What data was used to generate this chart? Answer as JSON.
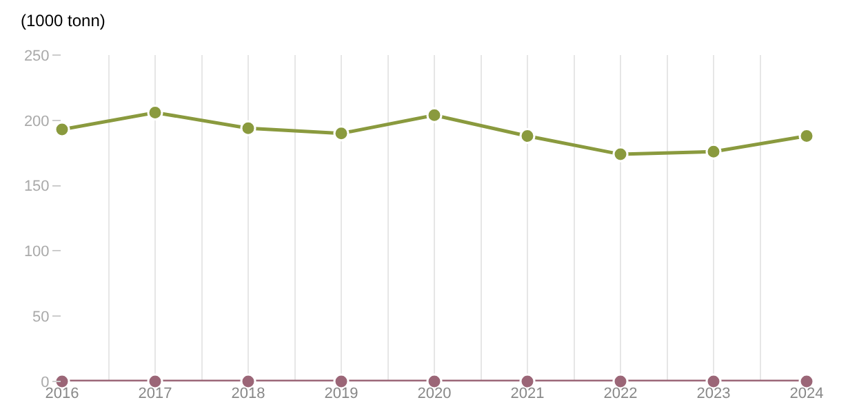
{
  "chart_data": {
    "type": "line",
    "ylabel": "(1000 tonn)",
    "x": [
      2016,
      2017,
      2018,
      2019,
      2020,
      2021,
      2022,
      2023,
      2024
    ],
    "series": [
      {
        "color": "#8a9a3e",
        "values": [
          193,
          206,
          194,
          190,
          204,
          188,
          174,
          176,
          188
        ]
      },
      {
        "color": "#9b6677",
        "values": [
          0,
          0,
          0,
          0,
          0,
          0,
          0,
          0,
          0
        ]
      }
    ],
    "xlim": [
      2016,
      2024
    ],
    "xticks": [
      2016,
      {
        "value": 2016.5,
        "label": null
      },
      2017,
      {
        "value": 2017.5,
        "label": null
      },
      2018,
      {
        "value": 2018.5,
        "label": null
      },
      2019,
      {
        "value": 2019.5,
        "label": null
      },
      2020,
      {
        "value": 2020.5,
        "label": null
      },
      2021,
      {
        "value": 2021.5,
        "label": null
      },
      2022,
      {
        "value": 2022.5,
        "label": null
      },
      2023,
      {
        "value": 2023.5,
        "label": null
      },
      2024
    ],
    "ylim": [
      0,
      250
    ],
    "yticks": [
      0,
      50,
      100,
      150,
      200,
      250
    ],
    "grid": "x",
    "marker": "circle",
    "line_style": "solid"
  }
}
